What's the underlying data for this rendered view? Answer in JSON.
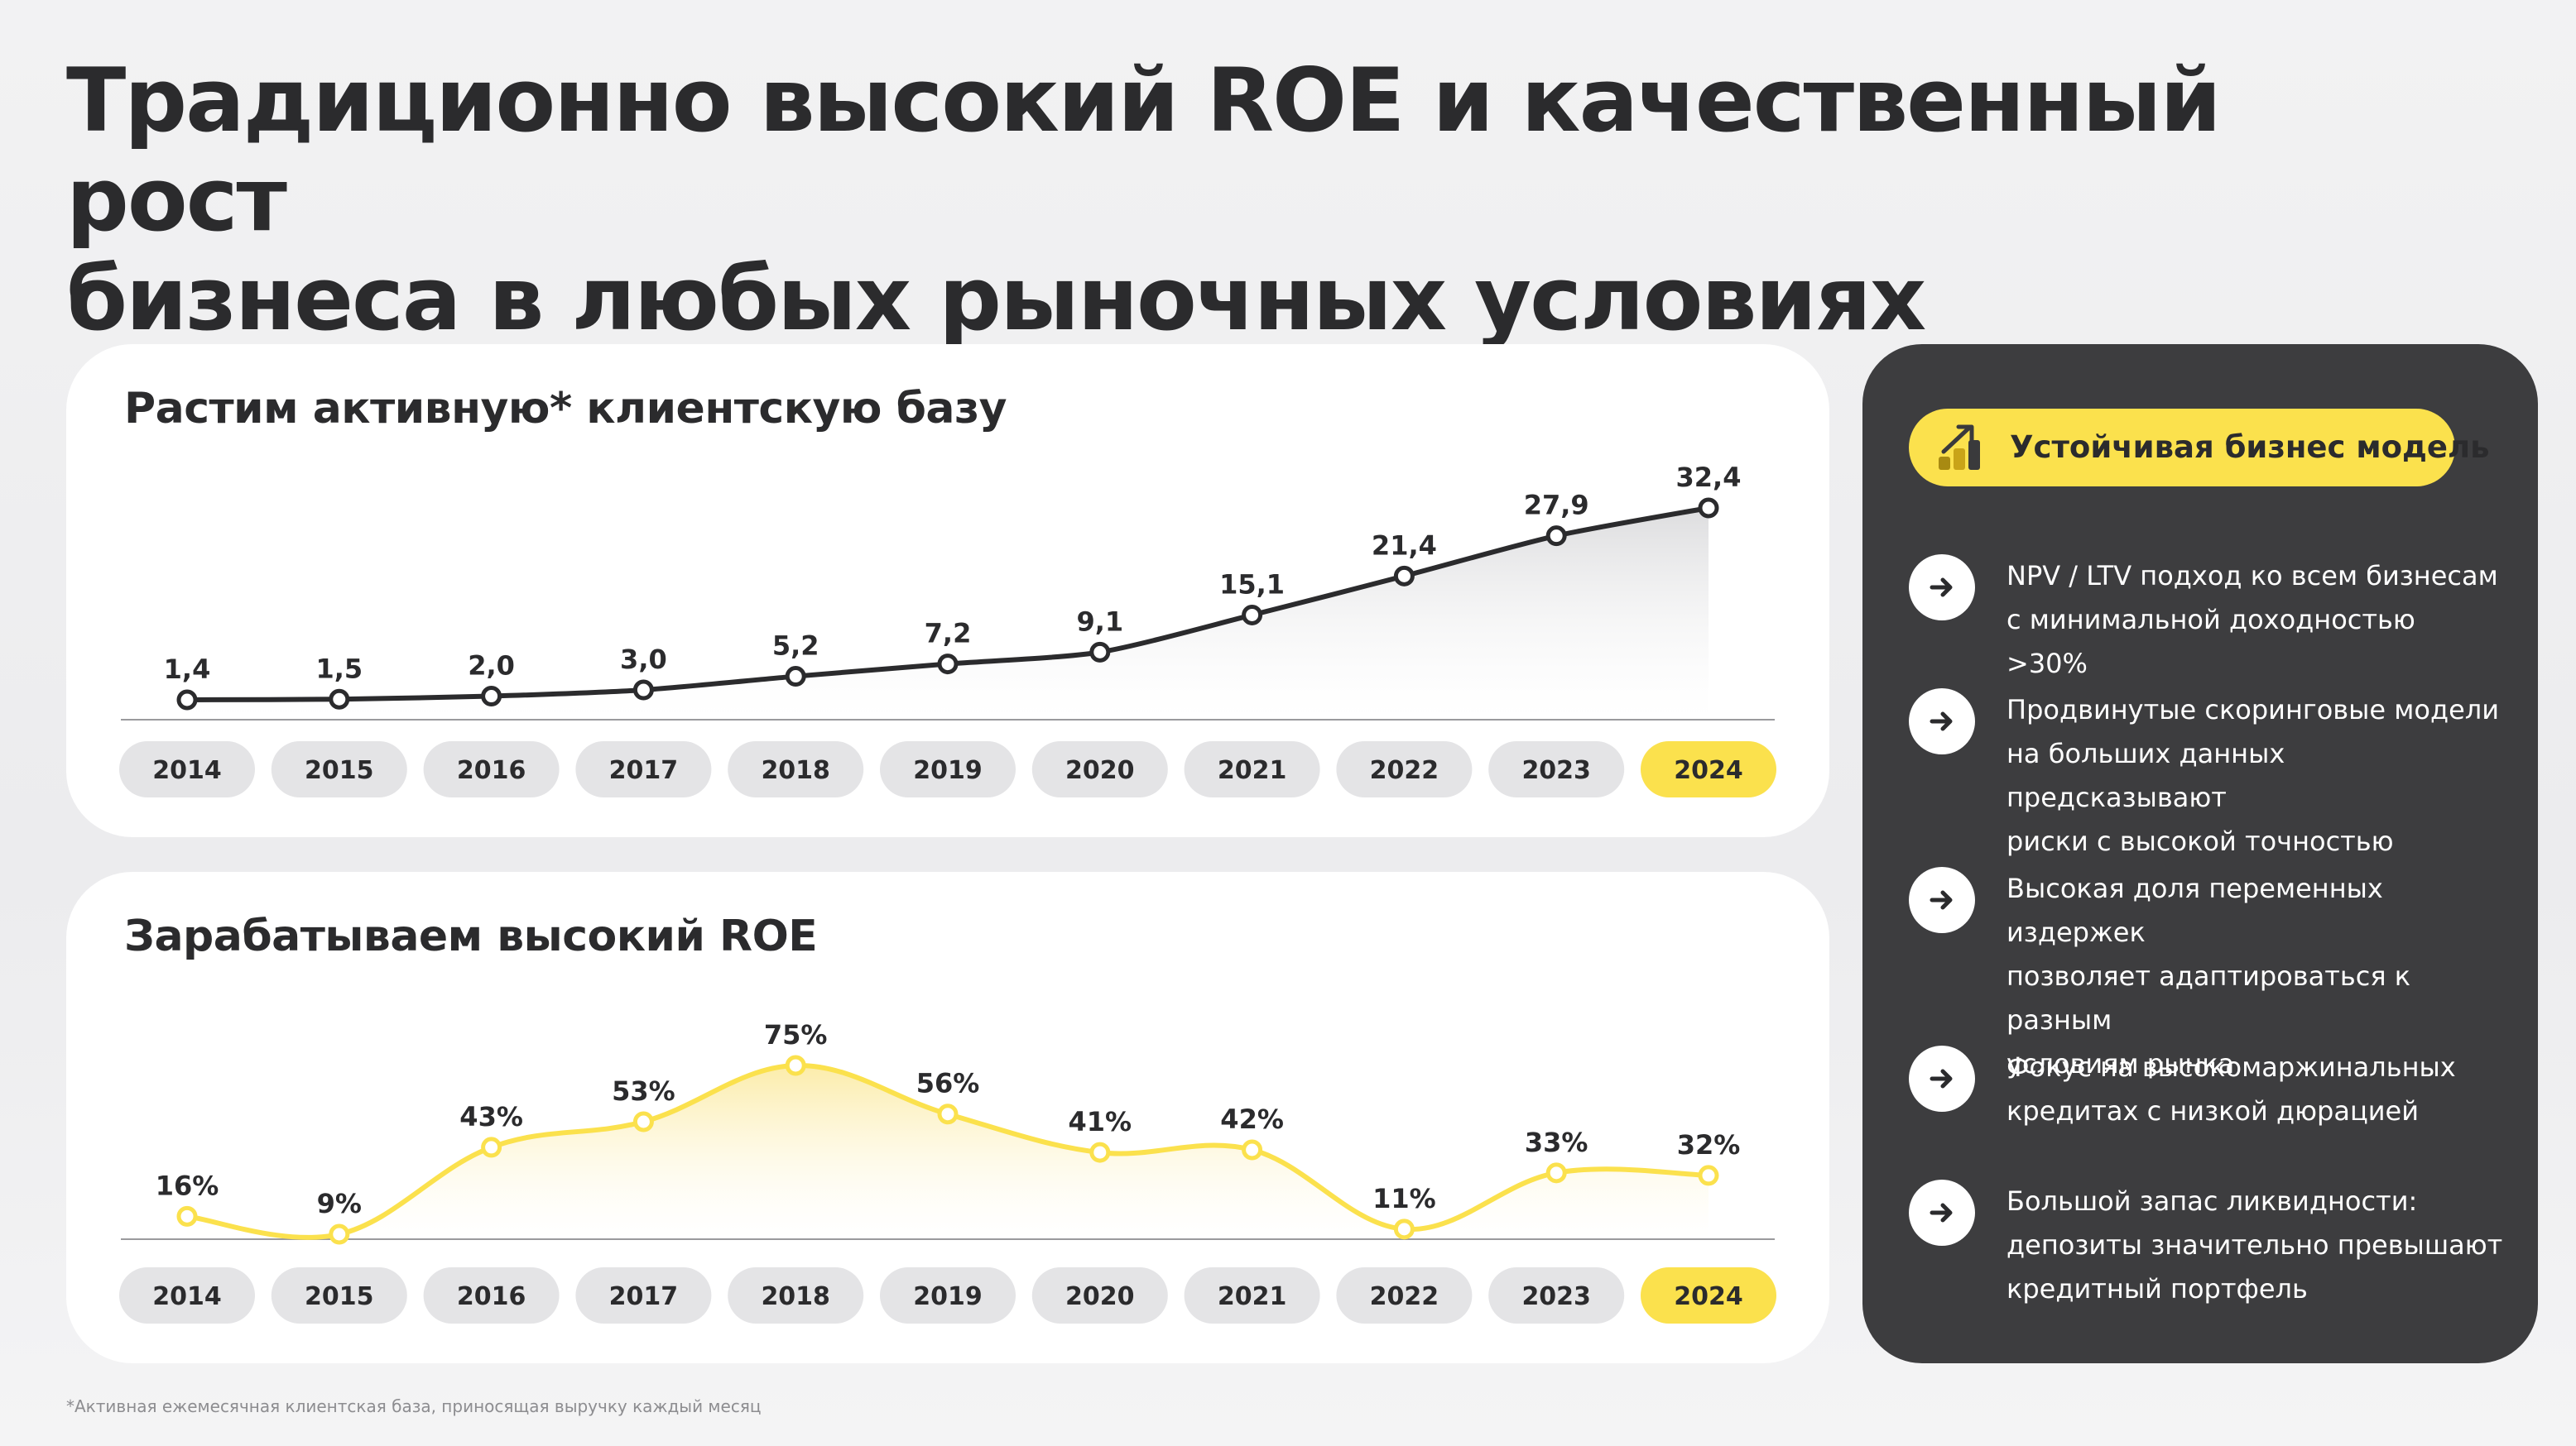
{
  "title": {
    "line1": "Традиционно высокий ROE и качественный рост",
    "line2": "бизнеса в любых рыночных условиях"
  },
  "footnote": "*Активная ежемесячная клиентская база, приносящая выручку каждый месяц",
  "highlight_color": "#fbe14d",
  "chart_data": [
    {
      "type": "area",
      "title": "Растим активную* клиентскую базу",
      "categories": [
        "2014",
        "2015",
        "2016",
        "2017",
        "2018",
        "2019",
        "2020",
        "2021",
        "2022",
        "2023",
        "2024"
      ],
      "values": [
        1.4,
        1.5,
        2.0,
        3.0,
        5.2,
        7.2,
        9.1,
        15.1,
        21.4,
        27.9,
        32.4
      ],
      "value_labels": [
        "1,4",
        "1,5",
        "2,0",
        "3,0",
        "5,2",
        "7,2",
        "9,1",
        "15,1",
        "21,4",
        "27,9",
        "32,4"
      ],
      "highlight_category": "2024",
      "line_color": "#2b2b2d",
      "ylim": [
        0,
        32.4
      ]
    },
    {
      "type": "area",
      "title": "Зарабатываем высокий ROE",
      "categories": [
        "2014",
        "2015",
        "2016",
        "2017",
        "2018",
        "2019",
        "2020",
        "2021",
        "2022",
        "2023",
        "2024"
      ],
      "values": [
        16,
        9,
        43,
        53,
        75,
        56,
        41,
        42,
        11,
        33,
        32
      ],
      "value_labels": [
        "16%",
        "9%",
        "43%",
        "53%",
        "75%",
        "56%",
        "41%",
        "42%",
        "11%",
        "33%",
        "32%"
      ],
      "highlight_category": "2024",
      "line_color": "#fbe14d",
      "ylim": [
        0,
        75
      ]
    }
  ],
  "sidebar": {
    "pill_label": "Устойчивая бизнес модель",
    "features": [
      {
        "lines": [
          "NPV / LTV подход ко всем бизнесам",
          "с минимальной доходностью >30%"
        ]
      },
      {
        "lines": [
          "Продвинутые скоринговые модели",
          "на больших данных предсказывают",
          "риски с высокой точностью"
        ]
      },
      {
        "lines": [
          "Высокая доля переменных издержек",
          "позволяет адаптироваться к разным",
          "условиям рынка"
        ]
      },
      {
        "lines": [
          "Фокус на высокомаржинальных",
          "кредитах с низкой дюрацией"
        ]
      },
      {
        "lines": [
          "Большой запас ликвидности:",
          "депозиты значительно превышают",
          "кредитный портфель"
        ]
      }
    ]
  }
}
